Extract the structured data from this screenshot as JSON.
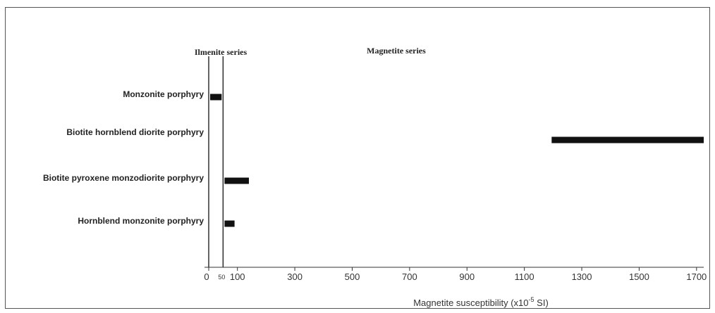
{
  "chart_data": {
    "type": "bar",
    "orientation": "horizontal",
    "title": "",
    "xlabel": "Magnetite susceptibility (x10",
    "xlabel_exponent": "-5",
    "xlabel_unit": " SI)",
    "ylabel": "",
    "categories": [
      "Monzonite porphyry",
      "Biotite hornblend diorite porphyry",
      "Biotite pyroxene monzodiorite porphyry",
      "Hornblend monzonite porphyry"
    ],
    "ranges": [
      [
        5,
        45
      ],
      [
        1195,
        1725
      ],
      [
        55,
        140
      ],
      [
        55,
        90
      ]
    ],
    "xlim": [
      0,
      1725
    ],
    "xticks": [
      0,
      100,
      300,
      500,
      700,
      900,
      1100,
      1300,
      1500,
      1700
    ],
    "xtick_labels": [
      "0",
      "100",
      "300",
      "500",
      "700",
      "900",
      "1100",
      "1300",
      "1500",
      "1700"
    ],
    "minor_tick": 50,
    "minor_tick_label": "50",
    "reference_lines": [
      {
        "x": 0
      },
      {
        "x": 50
      }
    ],
    "series_labels": {
      "ilmenite": "Ilmenite series",
      "magnetite": "Magnetite series"
    },
    "grid": false,
    "legend": "none",
    "bar_color": "#111111"
  }
}
